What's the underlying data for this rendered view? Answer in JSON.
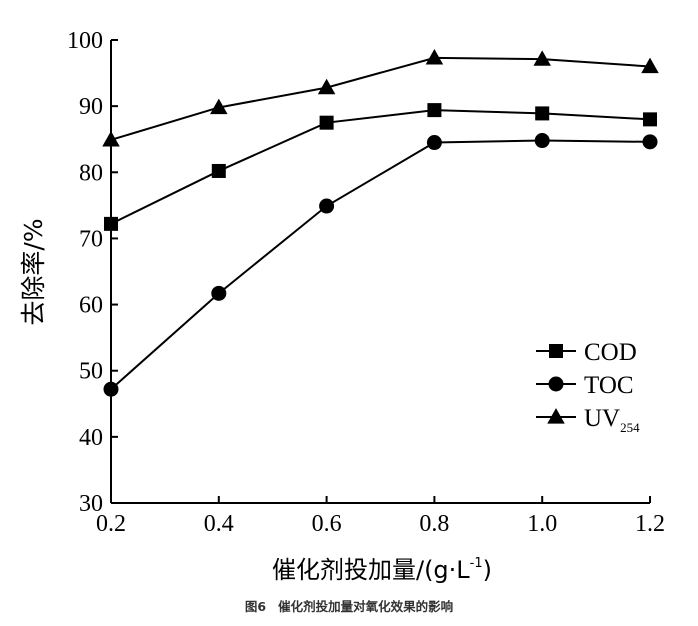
{
  "chart_data": {
    "type": "line",
    "title": "",
    "xlabel": "催化剂投加量/(g·L⁻¹)",
    "ylabel": "去除率/%",
    "x": [
      0.2,
      0.4,
      0.6,
      0.8,
      1.0,
      1.2
    ],
    "x_tick_labels": [
      "0.2",
      "0.4",
      "0.6",
      "0.8",
      "1.0",
      "1.2"
    ],
    "xlim": [
      0.2,
      1.2
    ],
    "ylim": [
      30,
      100
    ],
    "y_ticks": [
      30,
      40,
      50,
      60,
      70,
      80,
      90,
      100
    ],
    "y_tick_labels": [
      "30",
      "40",
      "50",
      "60",
      "70",
      "80",
      "90",
      "100"
    ],
    "legend_position": "right-middle",
    "series": [
      {
        "name": "COD",
        "marker": "square",
        "values": [
          72.2,
          80.2,
          87.5,
          89.4,
          88.9,
          88.0
        ]
      },
      {
        "name": "TOC",
        "marker": "circle",
        "values": [
          47.2,
          61.7,
          74.9,
          84.5,
          84.8,
          84.6
        ]
      },
      {
        "name": "UV",
        "name_subscript": "254",
        "marker": "triangle",
        "values": [
          84.9,
          89.8,
          92.8,
          97.3,
          97.1,
          96.0
        ]
      }
    ]
  },
  "caption": {
    "figure_number": "图6",
    "text": "催化剂投加量对氧化效果的影响"
  },
  "colors": {
    "line": "#000000",
    "caption": "#333333"
  }
}
